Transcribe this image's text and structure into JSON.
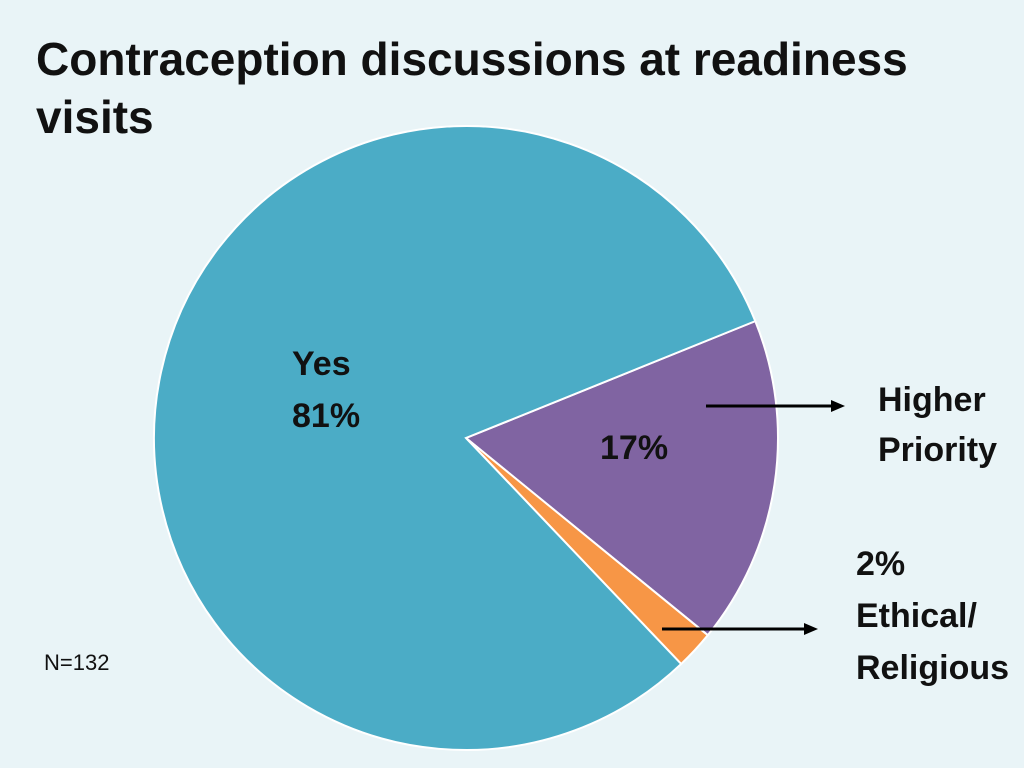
{
  "title": "Contraception discussions at readiness visits",
  "note": "N=132",
  "colors": {
    "yes": "#4bacc6",
    "higher_priority": "#8064a2",
    "ethical_religious": "#f79646",
    "background": "#e9f4f7"
  },
  "chart_data": {
    "type": "pie",
    "title": "Contraception discussions at readiness visits",
    "slices": [
      {
        "label": "Yes",
        "value": 81,
        "value_label": "81%",
        "color": "#4bacc6"
      },
      {
        "label": "Higher Priority",
        "value": 17,
        "value_label": "17%",
        "color": "#8064a2"
      },
      {
        "label": "Ethical/ Religious",
        "value": 2,
        "value_label": "2%",
        "color": "#f79646"
      }
    ],
    "annotations": [
      {
        "text": "Higher Priority",
        "points_to": "17%"
      },
      {
        "text": "2% Ethical/ Religious",
        "points_to": "2%"
      }
    ]
  },
  "labels": {
    "yes_name": "Yes",
    "yes_pct": "81%",
    "priority_pct": "17%",
    "priority_line1": "Higher",
    "priority_line2": "Priority",
    "ethical_pct": "2%",
    "ethical_line1": "Ethical/",
    "ethical_line2": "Religious"
  }
}
